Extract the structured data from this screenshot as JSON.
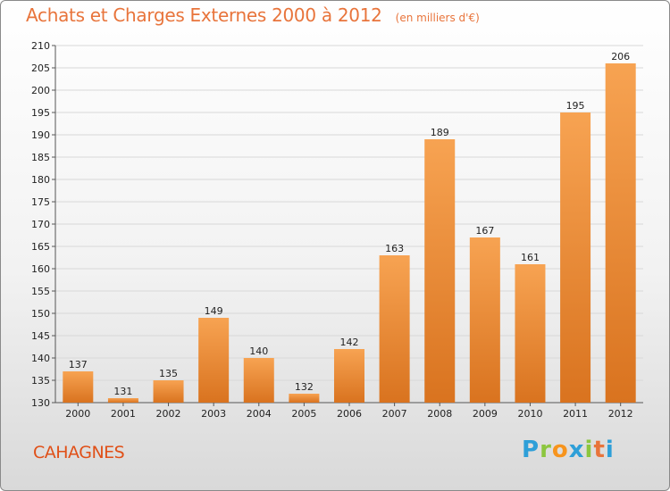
{
  "header": {
    "title": "Achats et Charges Externes 2000 à 2012",
    "subtitle": "(en milliers d'€)"
  },
  "footer": {
    "location": "CAHAGNES",
    "logo_letters": [
      {
        "ch": "P",
        "color": "#2e9fd8"
      },
      {
        "ch": "r",
        "color": "#8cc63f"
      },
      {
        "ch": "o",
        "color": "#f7941d"
      },
      {
        "ch": "x",
        "color": "#2e9fd8"
      },
      {
        "ch": "i",
        "color": "#8cc63f"
      },
      {
        "ch": "t",
        "color": "#e8743b"
      },
      {
        "ch": "i",
        "color": "#2e9fd8"
      }
    ]
  },
  "chart_data": {
    "type": "bar",
    "categories": [
      "2000",
      "2001",
      "2002",
      "2003",
      "2004",
      "2005",
      "2006",
      "2007",
      "2008",
      "2009",
      "2010",
      "2011",
      "2012"
    ],
    "values": [
      137,
      131,
      135,
      149,
      140,
      132,
      142,
      163,
      189,
      167,
      161,
      195,
      206
    ],
    "title": "Achats et Charges Externes 2000 à 2012",
    "subtitle": "(en milliers d'€)",
    "ylim": [
      130,
      210
    ],
    "yticks": [
      130,
      135,
      140,
      145,
      150,
      155,
      160,
      165,
      170,
      175,
      180,
      185,
      190,
      195,
      200,
      205,
      210
    ],
    "grid": true,
    "colors": {
      "bar_top": "#f7a352",
      "bar_bottom": "#d9731f",
      "grid": "#d8d8d8"
    }
  }
}
